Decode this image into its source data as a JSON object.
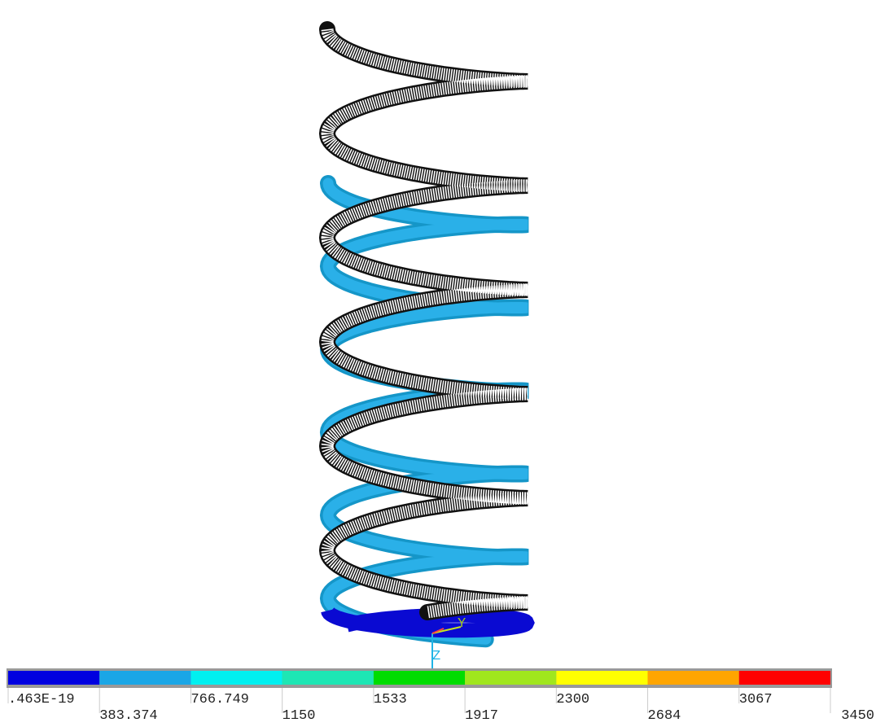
{
  "legend": {
    "colors": [
      "#0000e0",
      "#1aa6e6",
      "#00f0f0",
      "#1ee6b4",
      "#00dc00",
      "#a0e61e",
      "#ffff00",
      "#ffa500",
      "#ff0000"
    ],
    "labels": [
      ".463E-19",
      "383.374",
      "766.749",
      "1150",
      "1533",
      "1917",
      "2300",
      "2684",
      "3067",
      "3450"
    ]
  },
  "triad": {
    "y_label": "Y",
    "z_label": "Z"
  }
}
